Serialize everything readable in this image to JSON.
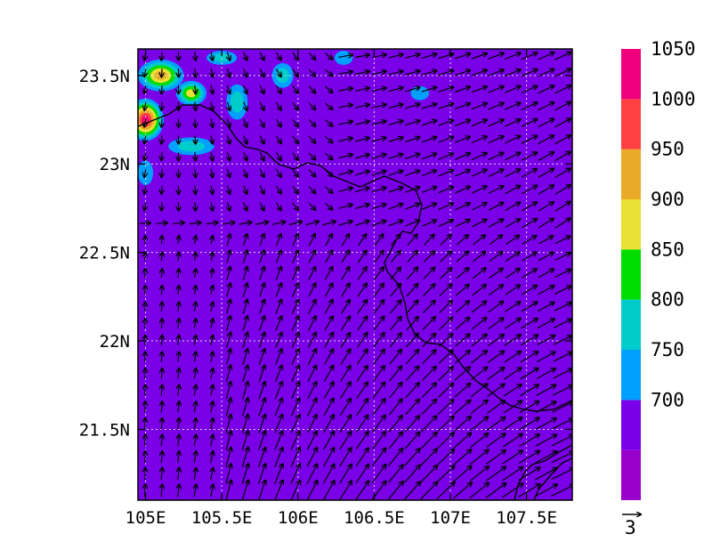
{
  "map": {
    "field": "contour_fill_with_wind_vectors",
    "extent": {
      "lon": [
        104.95,
        107.8
      ],
      "lat": [
        21.1,
        23.65
      ]
    },
    "background_value": 700,
    "x_ticks": [
      {
        "value": 105.0,
        "label": "105E"
      },
      {
        "value": 105.5,
        "label": "105.5E"
      },
      {
        "value": 106.0,
        "label": "106E"
      },
      {
        "value": 106.5,
        "label": "106.5E"
      },
      {
        "value": 107.0,
        "label": "107E"
      },
      {
        "value": 107.5,
        "label": "107.5E"
      }
    ],
    "y_ticks": [
      {
        "value": 21.5,
        "label": "21.5N"
      },
      {
        "value": 22.0,
        "label": "22N"
      },
      {
        "value": 22.5,
        "label": "22.5N"
      },
      {
        "value": 23.0,
        "label": "23N"
      },
      {
        "value": 23.5,
        "label": "23.5N"
      }
    ],
    "gridlines": true,
    "features": [
      {
        "lon": 105.0,
        "lat": 23.25,
        "value": 1060,
        "rx": 0.12,
        "ry": 0.12
      },
      {
        "lon": 105.1,
        "lat": 23.5,
        "value": 980,
        "rx": 0.15,
        "ry": 0.09
      },
      {
        "lon": 105.3,
        "lat": 23.4,
        "value": 900,
        "rx": 0.1,
        "ry": 0.07
      },
      {
        "lon": 105.3,
        "lat": 23.1,
        "value": 820,
        "rx": 0.15,
        "ry": 0.05
      },
      {
        "lon": 105.6,
        "lat": 23.35,
        "value": 830,
        "rx": 0.07,
        "ry": 0.1
      },
      {
        "lon": 105.9,
        "lat": 23.5,
        "value": 830,
        "rx": 0.07,
        "ry": 0.07
      },
      {
        "lon": 105.5,
        "lat": 23.6,
        "value": 810,
        "rx": 0.1,
        "ry": 0.04
      },
      {
        "lon": 106.8,
        "lat": 23.4,
        "value": 770,
        "rx": 0.06,
        "ry": 0.04
      },
      {
        "lon": 106.3,
        "lat": 23.6,
        "value": 760,
        "rx": 0.06,
        "ry": 0.04
      },
      {
        "lon": 105.0,
        "lat": 22.95,
        "value": 770,
        "rx": 0.05,
        "ry": 0.07
      }
    ],
    "wind_reference": {
      "label": "3"
    }
  },
  "colorbar": {
    "levels": [
      {
        "color": "#9900cc"
      },
      {
        "color": "#7a00e8",
        "label": "700"
      },
      {
        "color": "#00a0ff",
        "label": "750"
      },
      {
        "color": "#00cccc",
        "label": "800"
      },
      {
        "color": "#00dd00",
        "label": "850"
      },
      {
        "color": "#e8e032",
        "label": "900"
      },
      {
        "color": "#e8aa28",
        "label": "950"
      },
      {
        "color": "#ff4040",
        "label": "1000"
      },
      {
        "color": "#f0007c",
        "label": "1050"
      }
    ]
  }
}
